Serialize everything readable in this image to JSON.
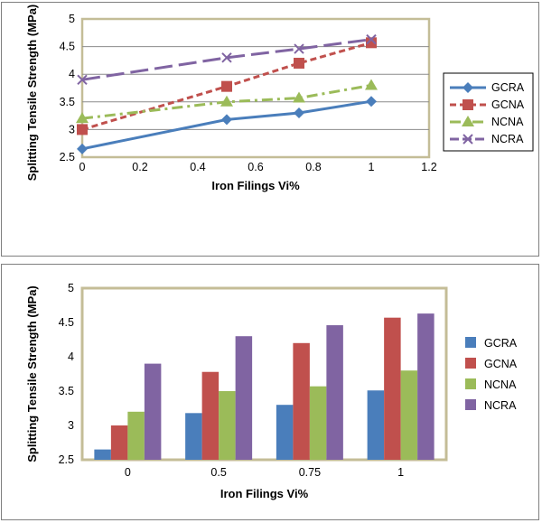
{
  "colors": {
    "GCRA": "#4a7ebb",
    "GCNA": "#c0504d",
    "NCNA": "#9bbb59",
    "NCRA": "#8064a2"
  },
  "chart_data": [
    {
      "type": "line",
      "xlabel": "Iron Filings Vi%",
      "ylabel": "Splitting Tensile Strength (MPa)",
      "xlim": [
        0,
        1.2
      ],
      "ylim": [
        2.5,
        5
      ],
      "x_ticks": [
        "0",
        "0.2",
        "0.4",
        "0.6",
        "0.8",
        "1",
        "1.2"
      ],
      "y_ticks": [
        "2.5",
        "3",
        "3.5",
        "4",
        "4.5",
        "5"
      ],
      "grid": "horizontal",
      "legend": "right",
      "x": [
        0,
        0.5,
        0.75,
        1
      ],
      "series": [
        {
          "name": "GCRA",
          "values": [
            2.65,
            3.18,
            3.3,
            3.51
          ],
          "style": "solid",
          "marker": "diamond"
        },
        {
          "name": "GCNA",
          "values": [
            3.0,
            3.78,
            4.2,
            4.57
          ],
          "style": "dashed",
          "marker": "square"
        },
        {
          "name": "NCNA",
          "values": [
            3.2,
            3.5,
            3.57,
            3.8
          ],
          "style": "dash-dot",
          "marker": "triangle"
        },
        {
          "name": "NCRA",
          "values": [
            3.9,
            4.3,
            4.46,
            4.63
          ],
          "style": "long-dash",
          "marker": "x"
        }
      ]
    },
    {
      "type": "bar",
      "xlabel": "Iron Filings  Vi%",
      "ylabel": "Splitting Tensile Strength (MPa)",
      "ylim": [
        2.5,
        5
      ],
      "y_ticks": [
        "2.5",
        "3",
        "3.5",
        "4",
        "4.5",
        "5"
      ],
      "categories": [
        "0",
        "0.5",
        "0.75",
        "1"
      ],
      "grid": "none",
      "legend": "right",
      "series": [
        {
          "name": "GCRA",
          "values": [
            2.65,
            3.18,
            3.3,
            3.51
          ]
        },
        {
          "name": "GCNA",
          "values": [
            3.0,
            3.78,
            4.2,
            4.57
          ]
        },
        {
          "name": "NCNA",
          "values": [
            3.2,
            3.5,
            3.57,
            3.8
          ]
        },
        {
          "name": "NCRA",
          "values": [
            3.9,
            4.3,
            4.46,
            4.63
          ]
        }
      ]
    }
  ]
}
